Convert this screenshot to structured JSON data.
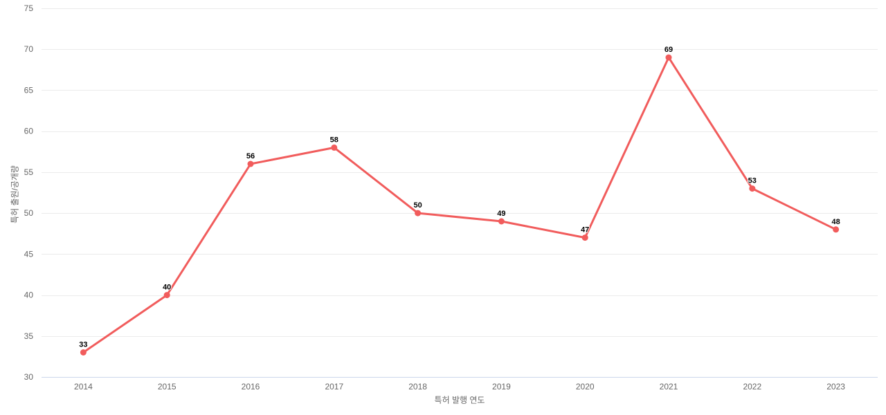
{
  "chart_data": {
    "type": "line",
    "categories": [
      "2014",
      "2015",
      "2016",
      "2017",
      "2018",
      "2019",
      "2020",
      "2021",
      "2022",
      "2023"
    ],
    "series": [
      {
        "name": "특허 출원/공개량",
        "values": [
          33,
          40,
          56,
          58,
          50,
          49,
          47,
          69,
          53,
          48
        ],
        "color": "#f15c5c"
      }
    ],
    "title": "",
    "xlabel": "특허 발행 연도",
    "ylabel": "특허 출원/공개량",
    "ylim": [
      30,
      75
    ],
    "ytick_step": 5,
    "yticks": [
      30,
      35,
      40,
      45,
      50,
      55,
      60,
      65,
      70,
      75
    ],
    "grid": true,
    "legend_position": "none",
    "data_labels_visible": true,
    "styles": {
      "grid_color": "#ebebeb",
      "axis_line_color": "#ccd6eb",
      "tick_label_color": "#666666",
      "axis_title_color": "#666666",
      "data_label_color": "#000000",
      "data_label_halo": "#ffffff",
      "background": "#ffffff"
    }
  }
}
